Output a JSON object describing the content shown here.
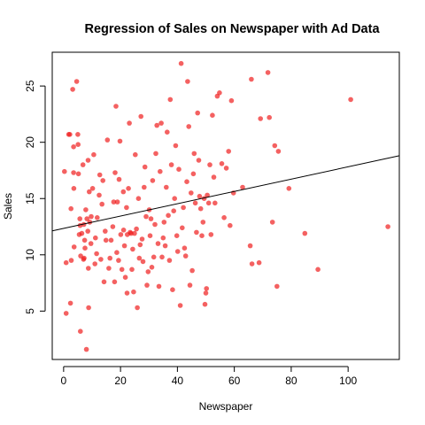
{
  "chart_data": {
    "type": "scatter",
    "title": "Regression of Sales on Newspaper with Ad Data",
    "xlabel": "Newspaper",
    "ylabel": "Sales",
    "xlim": [
      -4,
      118
    ],
    "ylim": [
      0.7,
      28.0
    ],
    "xticks": [
      0,
      20,
      40,
      60,
      80,
      100
    ],
    "yticks": [
      5,
      10,
      15,
      20,
      25
    ],
    "grid": false,
    "point_color": "#f01e1e",
    "point_opacity": 0.7,
    "line_color": "#000000",
    "regression_line": {
      "intercept": 12.35,
      "slope": 0.0547
    },
    "points": [
      [
        0.3,
        17.4
      ],
      [
        0.9,
        9.3
      ],
      [
        0.9,
        4.8
      ],
      [
        1.8,
        20.7
      ],
      [
        2.2,
        20.7
      ],
      [
        2.4,
        5.7
      ],
      [
        2.6,
        14.1
      ],
      [
        2.7,
        9.5
      ],
      [
        3.2,
        24.7
      ],
      [
        3.5,
        17.3
      ],
      [
        3.5,
        19.6
      ],
      [
        3.6,
        15.9
      ],
      [
        3.7,
        10.7
      ],
      [
        4.6,
        25.4
      ],
      [
        5.0,
        20.7
      ],
      [
        5.1,
        19.8
      ],
      [
        5.2,
        17.2
      ],
      [
        5.5,
        11.8
      ],
      [
        5.7,
        13.2
      ],
      [
        5.8,
        12.6
      ],
      [
        5.9,
        3.2
      ],
      [
        6.0,
        9.9
      ],
      [
        6.4,
        11.9
      ],
      [
        6.8,
        18.0
      ],
      [
        7.0,
        9.6
      ],
      [
        7.1,
        12.7
      ],
      [
        7.2,
        9.7
      ],
      [
        7.4,
        11.3
      ],
      [
        7.5,
        10.6
      ],
      [
        7.8,
        14.0
      ],
      [
        8.0,
        1.6
      ],
      [
        8.2,
        13.2
      ],
      [
        8.5,
        12.1
      ],
      [
        8.6,
        18.4
      ],
      [
        8.7,
        8.8
      ],
      [
        8.8,
        5.3
      ],
      [
        9.0,
        15.6
      ],
      [
        9.2,
        12.9
      ],
      [
        9.6,
        11.0
      ],
      [
        9.7,
        13.4
      ],
      [
        10.2,
        15.9
      ],
      [
        10.6,
        18.9
      ],
      [
        11.0,
        9.2
      ],
      [
        11.2,
        11.5
      ],
      [
        11.6,
        10.1
      ],
      [
        11.8,
        13.3
      ],
      [
        12.5,
        15.3
      ],
      [
        12.7,
        17.1
      ],
      [
        13.1,
        9.6
      ],
      [
        13.5,
        14.5
      ],
      [
        13.8,
        16.6
      ],
      [
        14.2,
        7.6
      ],
      [
        14.6,
        12.1
      ],
      [
        14.9,
        11.3
      ],
      [
        15.4,
        20.2
      ],
      [
        15.9,
        8.8
      ],
      [
        16.3,
        9.7
      ],
      [
        16.7,
        11.3
      ],
      [
        17.3,
        12.5
      ],
      [
        17.6,
        14.7
      ],
      [
        17.9,
        7.6
      ],
      [
        18.1,
        17.3
      ],
      [
        18.4,
        23.2
      ],
      [
        18.7,
        10.2
      ],
      [
        18.9,
        14.7
      ],
      [
        19.3,
        9.5
      ],
      [
        19.5,
        16.7
      ],
      [
        19.8,
        20.1
      ],
      [
        20.1,
        11.8
      ],
      [
        20.5,
        8.7
      ],
      [
        21.0,
        15.6
      ],
      [
        21.1,
        12.2
      ],
      [
        21.4,
        10.8
      ],
      [
        21.7,
        8.0
      ],
      [
        22.1,
        14.2
      ],
      [
        22.3,
        6.6
      ],
      [
        22.4,
        11.8
      ],
      [
        22.8,
        15.9
      ],
      [
        23.1,
        21.7
      ],
      [
        23.4,
        12.0
      ],
      [
        23.7,
        11.9
      ],
      [
        24.0,
        8.7
      ],
      [
        24.3,
        10.5
      ],
      [
        24.6,
        6.7
      ],
      [
        24.9,
        11.9
      ],
      [
        25.2,
        18.9
      ],
      [
        25.6,
        12.3
      ],
      [
        25.9,
        5.3
      ],
      [
        26.3,
        15.0
      ],
      [
        26.6,
        9.7
      ],
      [
        26.9,
        10.9
      ],
      [
        27.2,
        22.3
      ],
      [
        27.6,
        11.4
      ],
      [
        27.9,
        9.4
      ],
      [
        28.3,
        16.0
      ],
      [
        28.6,
        17.8
      ],
      [
        29.0,
        13.4
      ],
      [
        29.3,
        7.3
      ],
      [
        29.7,
        8.5
      ],
      [
        30.1,
        14.0
      ],
      [
        30.4,
        11.7
      ],
      [
        30.7,
        13.2
      ],
      [
        31.0,
        8.9
      ],
      [
        31.3,
        16.6
      ],
      [
        31.7,
        9.8
      ],
      [
        32.1,
        12.7
      ],
      [
        32.4,
        19.0
      ],
      [
        32.8,
        21.5
      ],
      [
        33.2,
        11.0
      ],
      [
        33.5,
        7.2
      ],
      [
        33.9,
        17.4
      ],
      [
        34.3,
        21.7
      ],
      [
        34.6,
        9.8
      ],
      [
        35.0,
        11.5
      ],
      [
        35.3,
        12.9
      ],
      [
        35.7,
        10.8
      ],
      [
        36.1,
        16.0
      ],
      [
        36.4,
        20.9
      ],
      [
        36.8,
        13.5
      ],
      [
        37.2,
        9.5
      ],
      [
        37.5,
        23.8
      ],
      [
        37.9,
        18.0
      ],
      [
        38.3,
        6.9
      ],
      [
        38.7,
        13.9
      ],
      [
        39.0,
        15.0
      ],
      [
        39.4,
        19.7
      ],
      [
        39.8,
        11.7
      ],
      [
        40.1,
        10.3
      ],
      [
        40.5,
        17.6
      ],
      [
        41.0,
        5.5
      ],
      [
        41.3,
        27.0
      ],
      [
        41.7,
        12.4
      ],
      [
        42.1,
        14.2
      ],
      [
        42.5,
        10.6
      ],
      [
        42.9,
        9.9
      ],
      [
        43.3,
        16.5
      ],
      [
        43.6,
        25.4
      ],
      [
        44.0,
        21.4
      ],
      [
        44.4,
        7.3
      ],
      [
        44.8,
        15.5
      ],
      [
        45.2,
        8.6
      ],
      [
        45.6,
        17.2
      ],
      [
        45.9,
        19.0
      ],
      [
        46.3,
        14.6
      ],
      [
        46.7,
        12.0
      ],
      [
        47.1,
        22.6
      ],
      [
        47.5,
        18.4
      ],
      [
        47.8,
        15.2
      ],
      [
        48.2,
        14.1
      ],
      [
        48.6,
        11.7
      ],
      [
        49.0,
        12.9
      ],
      [
        49.4,
        15.0
      ],
      [
        49.7,
        5.6
      ],
      [
        50.0,
        6.6
      ],
      [
        50.2,
        7.0
      ],
      [
        50.5,
        15.3
      ],
      [
        51.0,
        14.6
      ],
      [
        51.4,
        18.0
      ],
      [
        51.8,
        11.8
      ],
      [
        52.3,
        22.4
      ],
      [
        52.8,
        16.9
      ],
      [
        53.2,
        14.6
      ],
      [
        54.0,
        24.1
      ],
      [
        54.8,
        24.4
      ],
      [
        55.6,
        18.1
      ],
      [
        56.4,
        13.3
      ],
      [
        57.2,
        17.7
      ],
      [
        58.0,
        19.2
      ],
      [
        58.5,
        12.6
      ],
      [
        59.0,
        23.7
      ],
      [
        59.7,
        15.5
      ],
      [
        62.9,
        16.0
      ],
      [
        65.6,
        10.8
      ],
      [
        66.0,
        25.6
      ],
      [
        66.2,
        9.2
      ],
      [
        68.7,
        9.3
      ],
      [
        69.2,
        22.1
      ],
      [
        71.8,
        26.2
      ],
      [
        72.3,
        22.2
      ],
      [
        73.4,
        12.9
      ],
      [
        74.2,
        19.7
      ],
      [
        75.0,
        7.2
      ],
      [
        75.5,
        19.2
      ],
      [
        79.2,
        15.9
      ],
      [
        84.8,
        11.9
      ],
      [
        89.4,
        8.7
      ],
      [
        100.9,
        23.8
      ],
      [
        114.0,
        12.5
      ]
    ]
  }
}
